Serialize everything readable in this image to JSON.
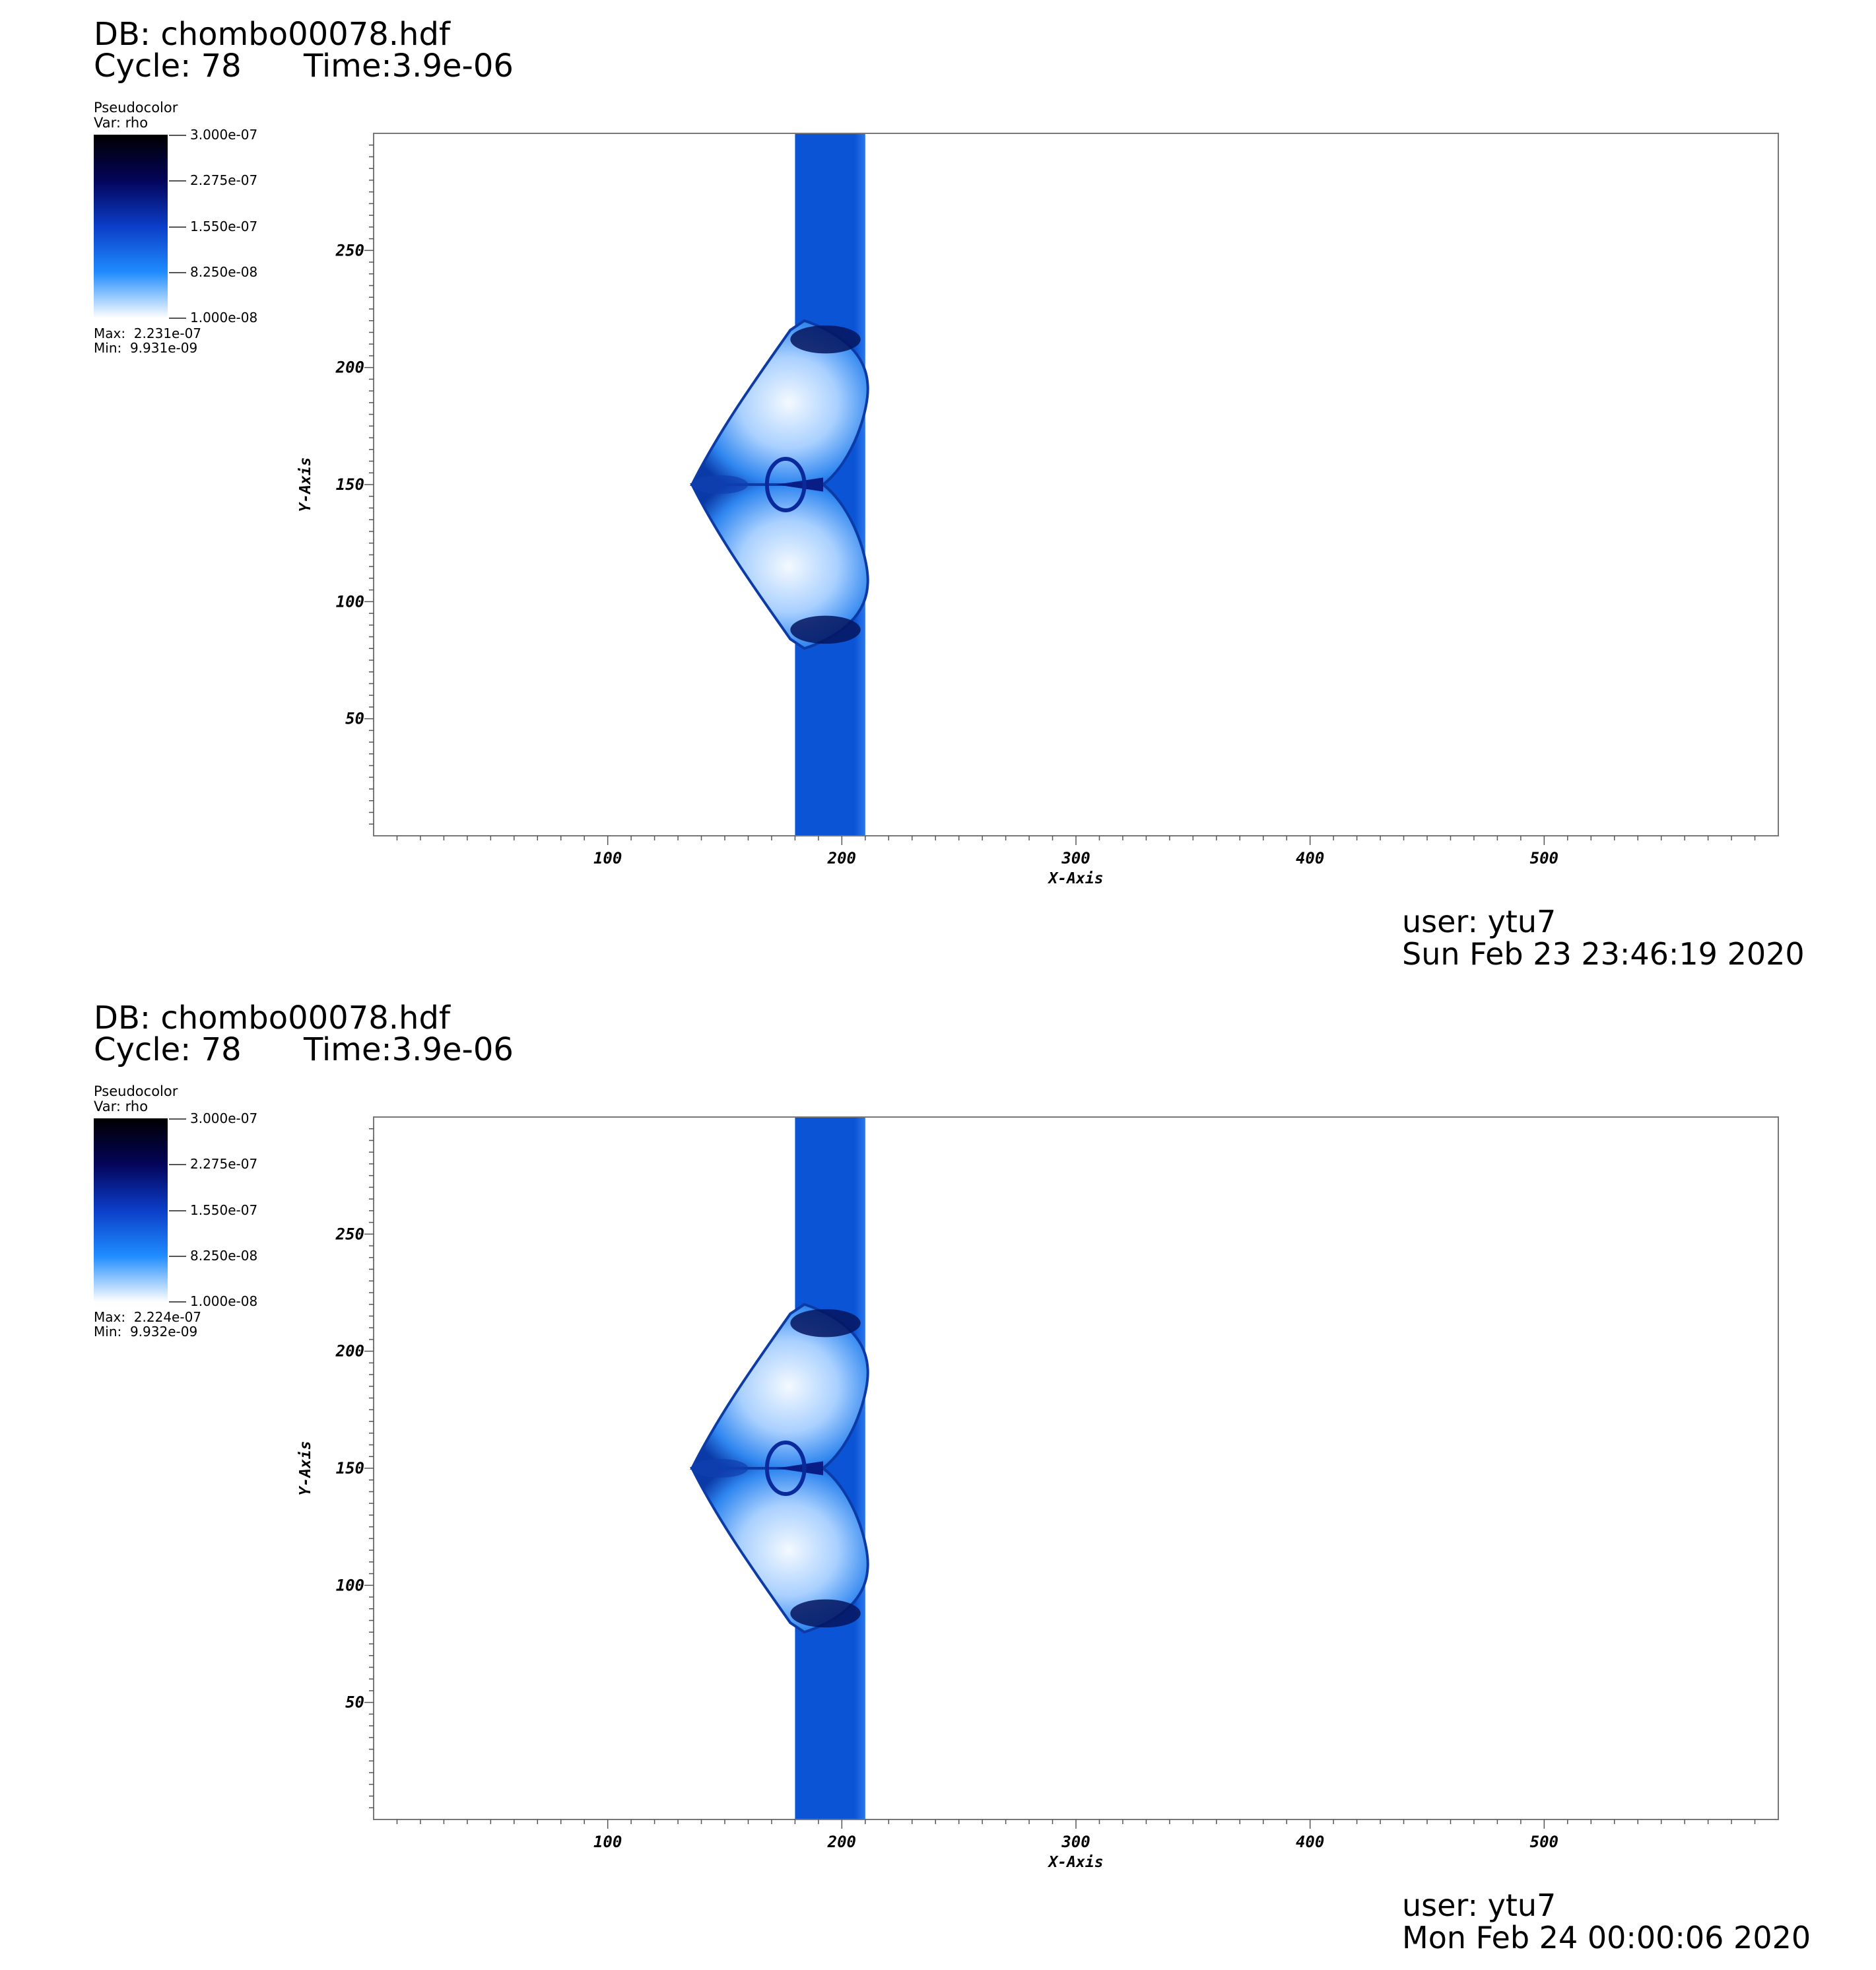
{
  "panels": [
    {
      "db": "DB: chombo00078.hdf",
      "cycle": "Cycle: 78",
      "time": "Time:3.9e-06",
      "legend": {
        "title": "Pseudocolor",
        "var": "Var: rho",
        "ticks": [
          "3.000e-07",
          "2.275e-07",
          "1.550e-07",
          "8.250e-08",
          "1.000e-08"
        ],
        "max": "Max:  2.231e-07",
        "min": "Min:  9.931e-09"
      },
      "user": "user: ytu7",
      "date": "Sun Feb 23 23:46:19 2020"
    },
    {
      "db": "DB: chombo00078.hdf",
      "cycle": "Cycle: 78",
      "time": "Time:3.9e-06",
      "legend": {
        "title": "Pseudocolor",
        "var": "Var: rho",
        "ticks": [
          "3.000e-07",
          "2.275e-07",
          "1.550e-07",
          "8.250e-08",
          "1.000e-08"
        ],
        "max": "Max:  2.224e-07",
        "min": "Min:  9.932e-09"
      },
      "user": "user: ytu7",
      "date": "Mon Feb 24 00:00:06 2020"
    }
  ],
  "chart_data": [
    {
      "type": "heatmap",
      "xlabel": "X-Axis",
      "ylabel": "Y-Axis",
      "xlim": [
        0,
        600
      ],
      "ylim": [
        0,
        300
      ],
      "xticks": [
        100,
        200,
        300,
        400,
        500
      ],
      "yticks": [
        50,
        100,
        150,
        200,
        250
      ],
      "colormap_range": [
        1e-08,
        3e-07
      ],
      "band_x": [
        180,
        210
      ],
      "band_color": "#0b54d6",
      "bubble_center_y": 150
    },
    {
      "type": "heatmap",
      "xlabel": "X-Axis",
      "ylabel": "Y-Axis",
      "xlim": [
        0,
        600
      ],
      "ylim": [
        0,
        300
      ],
      "xticks": [
        100,
        200,
        300,
        400,
        500
      ],
      "yticks": [
        50,
        100,
        150,
        200,
        250
      ],
      "colormap_range": [
        1e-08,
        3e-07
      ],
      "band_x": [
        180,
        210
      ],
      "band_color": "#0b54d6",
      "bubble_center_y": 150
    }
  ]
}
